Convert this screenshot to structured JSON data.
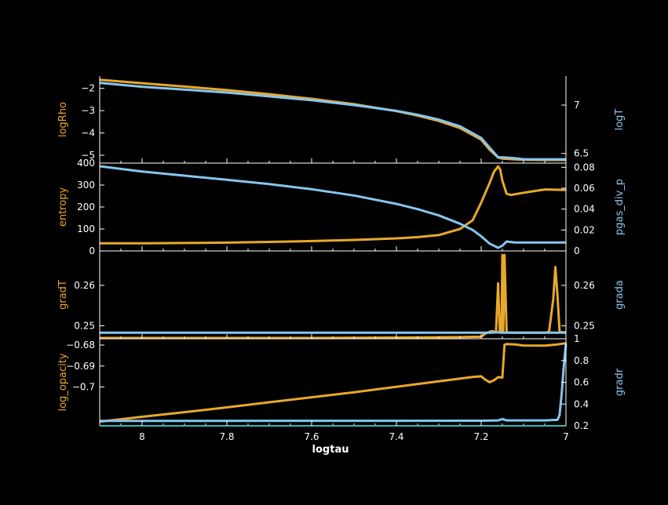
{
  "colors": {
    "background": "#000000",
    "axes": "#ffffff",
    "left_series": "#e8a82a",
    "right_series": "#87c5ee",
    "bottom_line": "#2fb7b5"
  },
  "chart_data": [
    {
      "type": "line",
      "xlim": [
        8.1,
        7.0
      ],
      "left_axis": {
        "label": "logRho",
        "ylim": [
          -5.35,
          -1.45
        ],
        "ticks": [
          -2,
          -3,
          -4,
          -5
        ],
        "tick_labels": [
          "−2",
          "−3",
          "−4",
          "−5"
        ]
      },
      "right_axis": {
        "label": "logT",
        "ylim": [
          6.4,
          7.3
        ],
        "ticks": [
          7,
          6.5
        ],
        "tick_labels": [
          "7",
          "6.5"
        ]
      },
      "series": [
        {
          "axis": "left",
          "color": "left",
          "x": [
            8.1,
            8.0,
            7.9,
            7.8,
            7.7,
            7.6,
            7.5,
            7.4,
            7.35,
            7.3,
            7.25,
            7.2,
            7.18,
            7.16,
            7.15,
            7.12,
            7.1,
            7.05,
            7.0
          ],
          "y": [
            -1.62,
            -1.77,
            -1.92,
            -2.08,
            -2.26,
            -2.47,
            -2.71,
            -3.02,
            -3.22,
            -3.46,
            -3.78,
            -4.3,
            -4.75,
            -5.1,
            -5.15,
            -5.18,
            -5.2,
            -5.21,
            -5.21
          ]
        },
        {
          "axis": "right",
          "color": "right",
          "x": [
            8.1,
            8.0,
            7.9,
            7.8,
            7.7,
            7.6,
            7.5,
            7.4,
            7.35,
            7.3,
            7.25,
            7.2,
            7.18,
            7.16,
            7.15,
            7.12,
            7.1,
            7.05,
            7.0
          ],
          "y": [
            7.23,
            7.19,
            7.16,
            7.13,
            7.09,
            7.05,
            7.0,
            6.94,
            6.9,
            6.85,
            6.78,
            6.66,
            6.56,
            6.46,
            6.46,
            6.45,
            6.44,
            6.44,
            6.44
          ]
        }
      ]
    },
    {
      "type": "line",
      "xlim": [
        8.1,
        7.0
      ],
      "left_axis": {
        "label": "entropy",
        "ylim": [
          0,
          400
        ],
        "ticks": [
          0,
          100,
          200,
          300,
          400
        ],
        "tick_labels": [
          "0",
          "100",
          "200",
          "300",
          "400"
        ]
      },
      "right_axis": {
        "label": "pgas_div_p",
        "ylim": [
          0,
          0.084
        ],
        "ticks": [
          0,
          0.02,
          0.04,
          0.06,
          0.08
        ],
        "tick_labels": [
          "0",
          "0.02",
          "0.04",
          "0.06",
          "0.08"
        ]
      },
      "series": [
        {
          "axis": "left",
          "color": "left",
          "x": [
            8.1,
            8.0,
            7.9,
            7.8,
            7.7,
            7.6,
            7.5,
            7.4,
            7.35,
            7.3,
            7.25,
            7.22,
            7.2,
            7.18,
            7.17,
            7.16,
            7.155,
            7.15,
            7.14,
            7.13,
            7.1,
            7.05,
            7.0
          ],
          "y": [
            35,
            35,
            36,
            38,
            41,
            45,
            50,
            57,
            63,
            72,
            100,
            140,
            220,
            310,
            360,
            385,
            370,
            320,
            260,
            255,
            265,
            280,
            278
          ]
        },
        {
          "axis": "right",
          "color": "right",
          "x": [
            8.1,
            8.0,
            7.9,
            7.8,
            7.7,
            7.6,
            7.5,
            7.4,
            7.35,
            7.3,
            7.25,
            7.22,
            7.2,
            7.18,
            7.16,
            7.15,
            7.14,
            7.12,
            7.1,
            7.05,
            7.0
          ],
          "y": [
            0.081,
            0.076,
            0.072,
            0.068,
            0.064,
            0.059,
            0.053,
            0.045,
            0.04,
            0.034,
            0.026,
            0.02,
            0.014,
            0.007,
            0.003,
            0.005,
            0.009,
            0.008,
            0.008,
            0.008,
            0.008
          ]
        }
      ]
    },
    {
      "type": "line",
      "xlim": [
        8.1,
        7.0
      ],
      "left_axis": {
        "label": "gradT",
        "ylim": [
          0.2468,
          0.2685
        ],
        "ticks": [
          0.25,
          0.26
        ],
        "tick_labels": [
          "0.25",
          "0.26"
        ]
      },
      "right_axis": {
        "label": "grada",
        "ylim": [
          0.2468,
          0.2685
        ],
        "ticks": [
          0.25,
          0.26
        ],
        "tick_labels": [
          "0.25",
          "0.26"
        ]
      },
      "series": [
        {
          "axis": "left",
          "color": "left",
          "x": [
            8.1,
            8.0,
            7.9,
            7.8,
            7.6,
            7.4,
            7.25,
            7.2,
            7.19,
            7.175,
            7.165,
            7.16,
            7.156,
            7.152,
            7.15,
            7.148,
            7.145,
            7.14,
            7.13,
            7.1,
            7.05,
            7.04,
            7.03,
            7.025,
            7.02,
            7.015,
            7.01,
            7.0
          ],
          "y": [
            0.2466,
            0.2466,
            0.2467,
            0.2468,
            0.2469,
            0.2471,
            0.2472,
            0.2473,
            0.2481,
            0.2487,
            0.2484,
            0.2605,
            0.2483,
            0.2483,
            0.2675,
            0.2484,
            0.2675,
            0.2484,
            0.2483,
            0.2483,
            0.2483,
            0.2485,
            0.2565,
            0.2645,
            0.2575,
            0.2485,
            0.2484,
            0.2484
          ]
        },
        {
          "axis": "right",
          "color": "right",
          "x": [
            8.1,
            7.2,
            7.18,
            7.16,
            7.15,
            7.14,
            7.03,
            7.02,
            7.0
          ],
          "y": [
            0.2483,
            0.2483,
            0.2483,
            0.2484,
            0.2483,
            0.2483,
            0.2483,
            0.2483,
            0.2483
          ]
        }
      ]
    },
    {
      "type": "line",
      "xlim": [
        8.1,
        7.0
      ],
      "left_axis": {
        "label": "log_opacity",
        "ylim": [
          -0.7185,
          -0.677
        ],
        "ticks": [
          -0.68,
          -0.69,
          -0.7
        ],
        "tick_labels": [
          "−0.68",
          "−0.69",
          "−0.7"
        ]
      },
      "right_axis": {
        "label": "gradr",
        "ylim": [
          0.2,
          1.0
        ],
        "ticks": [
          0.2,
          0.4,
          0.6,
          0.8,
          1.0
        ],
        "tick_labels": [
          "0.2",
          "0.4",
          "0.6",
          "0.8",
          "1"
        ]
      },
      "series": [
        {
          "axis": "left",
          "color": "left",
          "x": [
            8.1,
            8.0,
            7.9,
            7.8,
            7.7,
            7.6,
            7.5,
            7.4,
            7.3,
            7.22,
            7.2,
            7.19,
            7.18,
            7.17,
            7.16,
            7.15,
            7.145,
            7.14,
            7.12,
            7.1,
            7.05,
            7.02,
            7.0
          ],
          "y": [
            -0.7165,
            -0.7142,
            -0.712,
            -0.7097,
            -0.7073,
            -0.7049,
            -0.7025,
            -0.6999,
            -0.6973,
            -0.6952,
            -0.6949,
            -0.6965,
            -0.6977,
            -0.6968,
            -0.6953,
            -0.6955,
            -0.6799,
            -0.6795,
            -0.6797,
            -0.6802,
            -0.6803,
            -0.6797,
            -0.6791
          ]
        },
        {
          "axis": "right",
          "color": "right",
          "x": [
            8.1,
            7.5,
            7.2,
            7.16,
            7.15,
            7.14,
            7.05,
            7.02,
            7.015,
            7.01,
            7.005,
            7.0
          ],
          "y": [
            0.245,
            0.246,
            0.247,
            0.25,
            0.262,
            0.25,
            0.25,
            0.255,
            0.3,
            0.5,
            0.75,
            0.96
          ]
        }
      ]
    }
  ],
  "x_axis": {
    "label": "logtau",
    "ticks": [
      8,
      7.8,
      7.6,
      7.4,
      7.2,
      7.0
    ],
    "tick_labels": [
      "8",
      "7.8",
      "7.6",
      "7.4",
      "7.2",
      "7"
    ]
  }
}
